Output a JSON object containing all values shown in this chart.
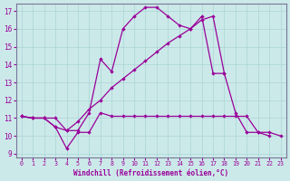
{
  "title": "",
  "xlabel": "Windchill (Refroidissement éolien,°C)",
  "background_color": "#cce9e9",
  "line_color": "#990099",
  "grid_color": "#aad4d4",
  "xlim": [
    -0.5,
    23.5
  ],
  "ylim": [
    8.8,
    17.4
  ],
  "xticks": [
    0,
    1,
    2,
    3,
    4,
    5,
    6,
    7,
    8,
    9,
    10,
    11,
    12,
    13,
    14,
    15,
    16,
    17,
    18,
    19,
    20,
    21,
    22,
    23
  ],
  "yticks": [
    9,
    10,
    11,
    12,
    13,
    14,
    15,
    16,
    17
  ],
  "line1_x": [
    0,
    1,
    2,
    3,
    4,
    5,
    6,
    7,
    8,
    9,
    10,
    11,
    12,
    13,
    14,
    15,
    16,
    17,
    18,
    19,
    20,
    21,
    22,
    23
  ],
  "line1_y": [
    11.1,
    11.0,
    11.0,
    10.5,
    9.3,
    10.2,
    10.2,
    11.3,
    11.1,
    11.1,
    11.1,
    11.1,
    11.1,
    11.1,
    11.1,
    11.1,
    11.1,
    11.1,
    11.1,
    11.1,
    11.1,
    10.2,
    10.2,
    10.0
  ],
  "line2_x": [
    0,
    1,
    2,
    3,
    4,
    5,
    6,
    7,
    8,
    9,
    10,
    11,
    12,
    13,
    14,
    15,
    16,
    17,
    18,
    19,
    20,
    21,
    22,
    23
  ],
  "line2_y": [
    11.1,
    11.0,
    11.0,
    10.5,
    10.3,
    10.3,
    11.3,
    14.3,
    13.6,
    16.0,
    16.7,
    17.2,
    17.2,
    16.7,
    16.2,
    16.0,
    16.7,
    13.5,
    13.5,
    11.3,
    10.2,
    10.2,
    10.0,
    null
  ],
  "line3_x": [
    0,
    1,
    2,
    3,
    4,
    5,
    6,
    7,
    8,
    9,
    10,
    11,
    12,
    13,
    14,
    15,
    16,
    17,
    18,
    19,
    20,
    21,
    22,
    23
  ],
  "line3_y": [
    11.1,
    11.0,
    11.0,
    11.0,
    10.3,
    10.8,
    11.5,
    12.0,
    12.7,
    13.2,
    13.7,
    14.2,
    14.7,
    15.2,
    15.6,
    16.0,
    16.5,
    16.7,
    13.5,
    null,
    null,
    null,
    null,
    null
  ]
}
